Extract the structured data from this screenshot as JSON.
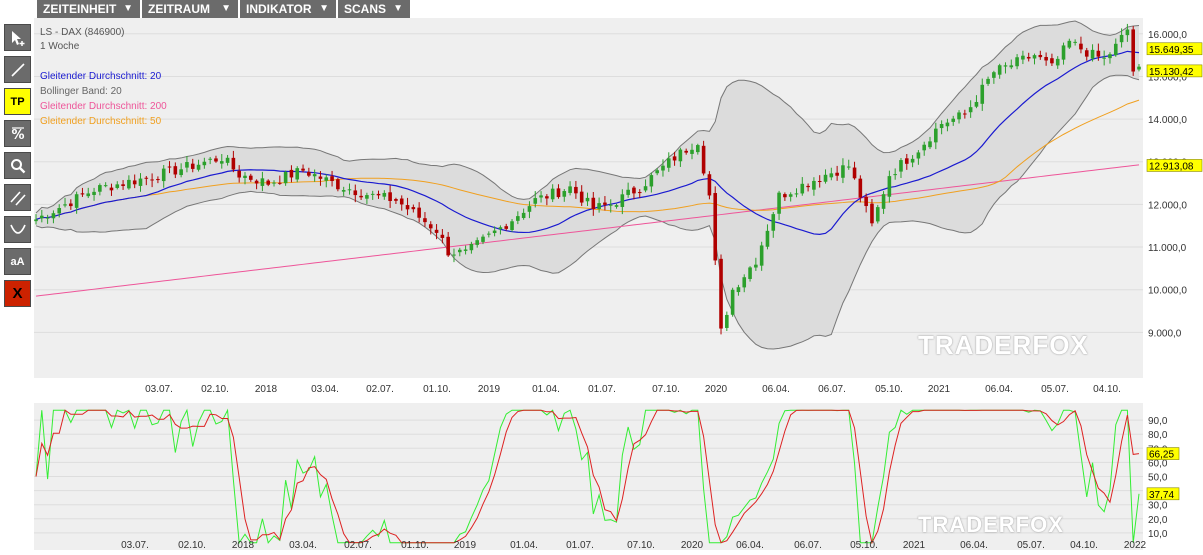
{
  "toolbar": {
    "menus": [
      {
        "label": "ZEITEINHEIT"
      },
      {
        "label": "ZEITRAUM"
      },
      {
        "label": "INDIKATOR"
      },
      {
        "label": "SCANS"
      }
    ],
    "caret": "▼"
  },
  "tools": [
    {
      "name": "cursor-tool-button",
      "icon": "cursor-arrow-icon",
      "label": ""
    },
    {
      "name": "line-tool-button",
      "icon": "diagonal-line-icon",
      "label": ""
    },
    {
      "name": "tp-tool-button",
      "icon": "",
      "label": "TP"
    },
    {
      "name": "percent-tool-button",
      "icon": "percent-icon",
      "label": ""
    },
    {
      "name": "zoom-tool-button",
      "icon": "magnifier-icon",
      "label": ""
    },
    {
      "name": "channel-tool-button",
      "icon": "parallel-lines-icon",
      "label": ""
    },
    {
      "name": "curve-tool-button",
      "icon": "curve-icon",
      "label": ""
    },
    {
      "name": "text-tool-button",
      "icon": "",
      "label": "aA"
    },
    {
      "name": "delete-tool-button",
      "icon": "close-icon",
      "label": "X"
    }
  ],
  "colors": {
    "menu_bg": "#6b6b6b",
    "tp_active": "#ffff00",
    "delete_red": "#cc2200",
    "up_candle": "#2ca02c",
    "down_candle": "#b00000",
    "ma20": "#1a1ad0",
    "bb": "#777777",
    "bb_fill": "#dcdcdc",
    "ma200": "#ee5599",
    "ma50": "#f0a020",
    "stoch_k": "#33ee33",
    "stoch_d": "#dd2222"
  },
  "legend": {
    "instrument": "LS - DAX (846900)",
    "timeframe": "1 Woche",
    "ma20": "Gleitender Durchschnitt: 20",
    "bb": "Bollinger Band: 20",
    "ma200": "Gleitender Durchschnitt: 200",
    "ma50": "Gleitender Durchschnitt: 50"
  },
  "watermark": "TRADERFOX",
  "chart_data": [
    {
      "type": "line",
      "subtype": "candlestick",
      "title": "",
      "xlabel": "",
      "ylabel": "",
      "ylim": [
        8000,
        16300
      ],
      "x_tick_labels": [
        "03.07.",
        "02.10.",
        "2018",
        "03.04.",
        "02.07.",
        "01.10.",
        "2019",
        "01.04.",
        "01.07.",
        "07.10.",
        "2020",
        "06.04.",
        "06.07.",
        "05.10.",
        "2021",
        "06.04.",
        "05.07.",
        "04.10."
      ],
      "y_ticks": [
        9000,
        10000,
        11000,
        12000,
        13000,
        14000,
        15000,
        16000
      ],
      "y_tick_labels": [
        "9.000,0",
        "10.000,0",
        "11.000,0",
        "12.000,0",
        "13.000,0",
        "14.000,0",
        "15.000,0",
        "16.000,0"
      ],
      "price_labels": [
        {
          "value": 15649.35,
          "text": "15.649,35",
          "bg": "#ffff00"
        },
        {
          "value": 15130.42,
          "text": "15.130,42",
          "bg": "#ffff00"
        },
        {
          "value": 12913.08,
          "text": "12.913,08",
          "bg": "#ffff00"
        }
      ],
      "anchors": [
        [
          0,
          11650
        ],
        [
          10,
          12350
        ],
        [
          20,
          12650
        ],
        [
          28,
          12950
        ],
        [
          32,
          13100
        ],
        [
          35,
          12700
        ],
        [
          40,
          12500
        ],
        [
          46,
          12800
        ],
        [
          52,
          12450
        ],
        [
          58,
          12200
        ],
        [
          62,
          12100
        ],
        [
          66,
          11700
        ],
        [
          69,
          11400
        ],
        [
          71,
          10900
        ],
        [
          74,
          10850
        ],
        [
          78,
          11250
        ],
        [
          82,
          11650
        ],
        [
          86,
          12100
        ],
        [
          92,
          12400
        ],
        [
          96,
          11900
        ],
        [
          99,
          12000
        ],
        [
          104,
          12400
        ],
        [
          110,
          13100
        ],
        [
          114,
          13500
        ],
        [
          116,
          12200
        ],
        [
          118,
          9000
        ],
        [
          120,
          10000
        ],
        [
          124,
          10700
        ],
        [
          128,
          12200
        ],
        [
          136,
          12700
        ],
        [
          140,
          12900
        ],
        [
          144,
          11500
        ],
        [
          147,
          12700
        ],
        [
          152,
          13300
        ],
        [
          156,
          13900
        ],
        [
          160,
          14100
        ],
        [
          165,
          15100
        ],
        [
          172,
          15500
        ],
        [
          175,
          15200
        ],
        [
          178,
          15800
        ],
        [
          182,
          15500
        ],
        [
          184,
          15400
        ],
        [
          186,
          15700
        ],
        [
          188,
          16100
        ],
        [
          189,
          15130
        ]
      ],
      "series": [
        {
          "name": "Gleitender Durchschnitt: 20",
          "period": 20
        },
        {
          "name": "Bollinger Band: 20",
          "period": 20
        },
        {
          "name": "Gleitender Durchschnitt: 200",
          "period": 200
        },
        {
          "name": "Gleitender Durchschnitt: 50",
          "period": 50
        }
      ]
    },
    {
      "type": "line",
      "subtype": "stochastic",
      "title": "",
      "xlabel": "",
      "ylabel": "",
      "ylim": [
        0,
        100
      ],
      "x_tick_labels": [
        "03.07.",
        "02.10.",
        "2018",
        "03.04.",
        "02.07.",
        "01.10.",
        "2019",
        "01.04.",
        "01.07.",
        "07.10.",
        "2020",
        "06.04.",
        "06.07.",
        "05.10.",
        "2021",
        "06.04.",
        "05.07.",
        "04.10.",
        "2022"
      ],
      "y_ticks": [
        10,
        20,
        30,
        40,
        50,
        60,
        70,
        80,
        90
      ],
      "y_tick_labels": [
        "10,0",
        "20,0",
        "30,0",
        "40,0",
        "50,0",
        "60,0",
        "70,0",
        "80,0",
        "90,0"
      ],
      "value_labels": [
        {
          "value": 66.25,
          "text": "66,25",
          "bg": "#ffff00"
        },
        {
          "value": 37.74,
          "text": "37,74",
          "bg": "#ffff00"
        }
      ]
    }
  ]
}
